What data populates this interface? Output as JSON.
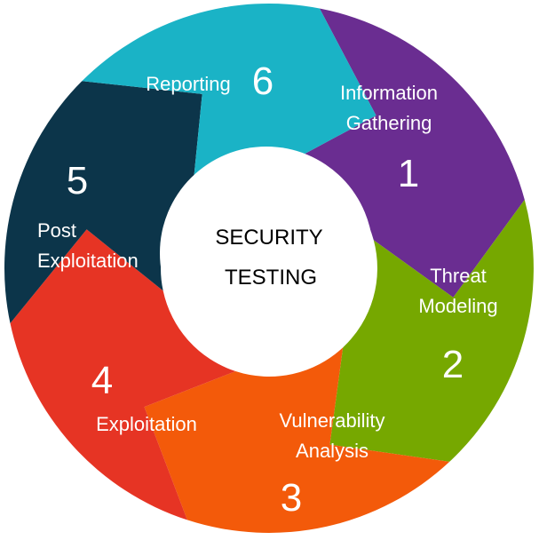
{
  "center": {
    "line1": "SECURITY",
    "line2": "TESTING"
  },
  "steps": [
    {
      "number": "1",
      "label_lines": [
        "Information",
        "Gathering"
      ],
      "color": "#6a2d91"
    },
    {
      "number": "2",
      "label_lines": [
        "Threat",
        "Modeling"
      ],
      "color": "#76a800"
    },
    {
      "number": "3",
      "label_lines": [
        "Vulnerability",
        "Analysis"
      ],
      "color": "#f35a0a"
    },
    {
      "number": "4",
      "label_lines": [
        "Exploitation"
      ],
      "color": "#e63424"
    },
    {
      "number": "5",
      "label_lines": [
        "Post",
        "Exploitation"
      ],
      "color": "#0c354a"
    },
    {
      "number": "6",
      "label_lines": [
        "Reporting"
      ],
      "color": "#1ab3c6"
    }
  ]
}
